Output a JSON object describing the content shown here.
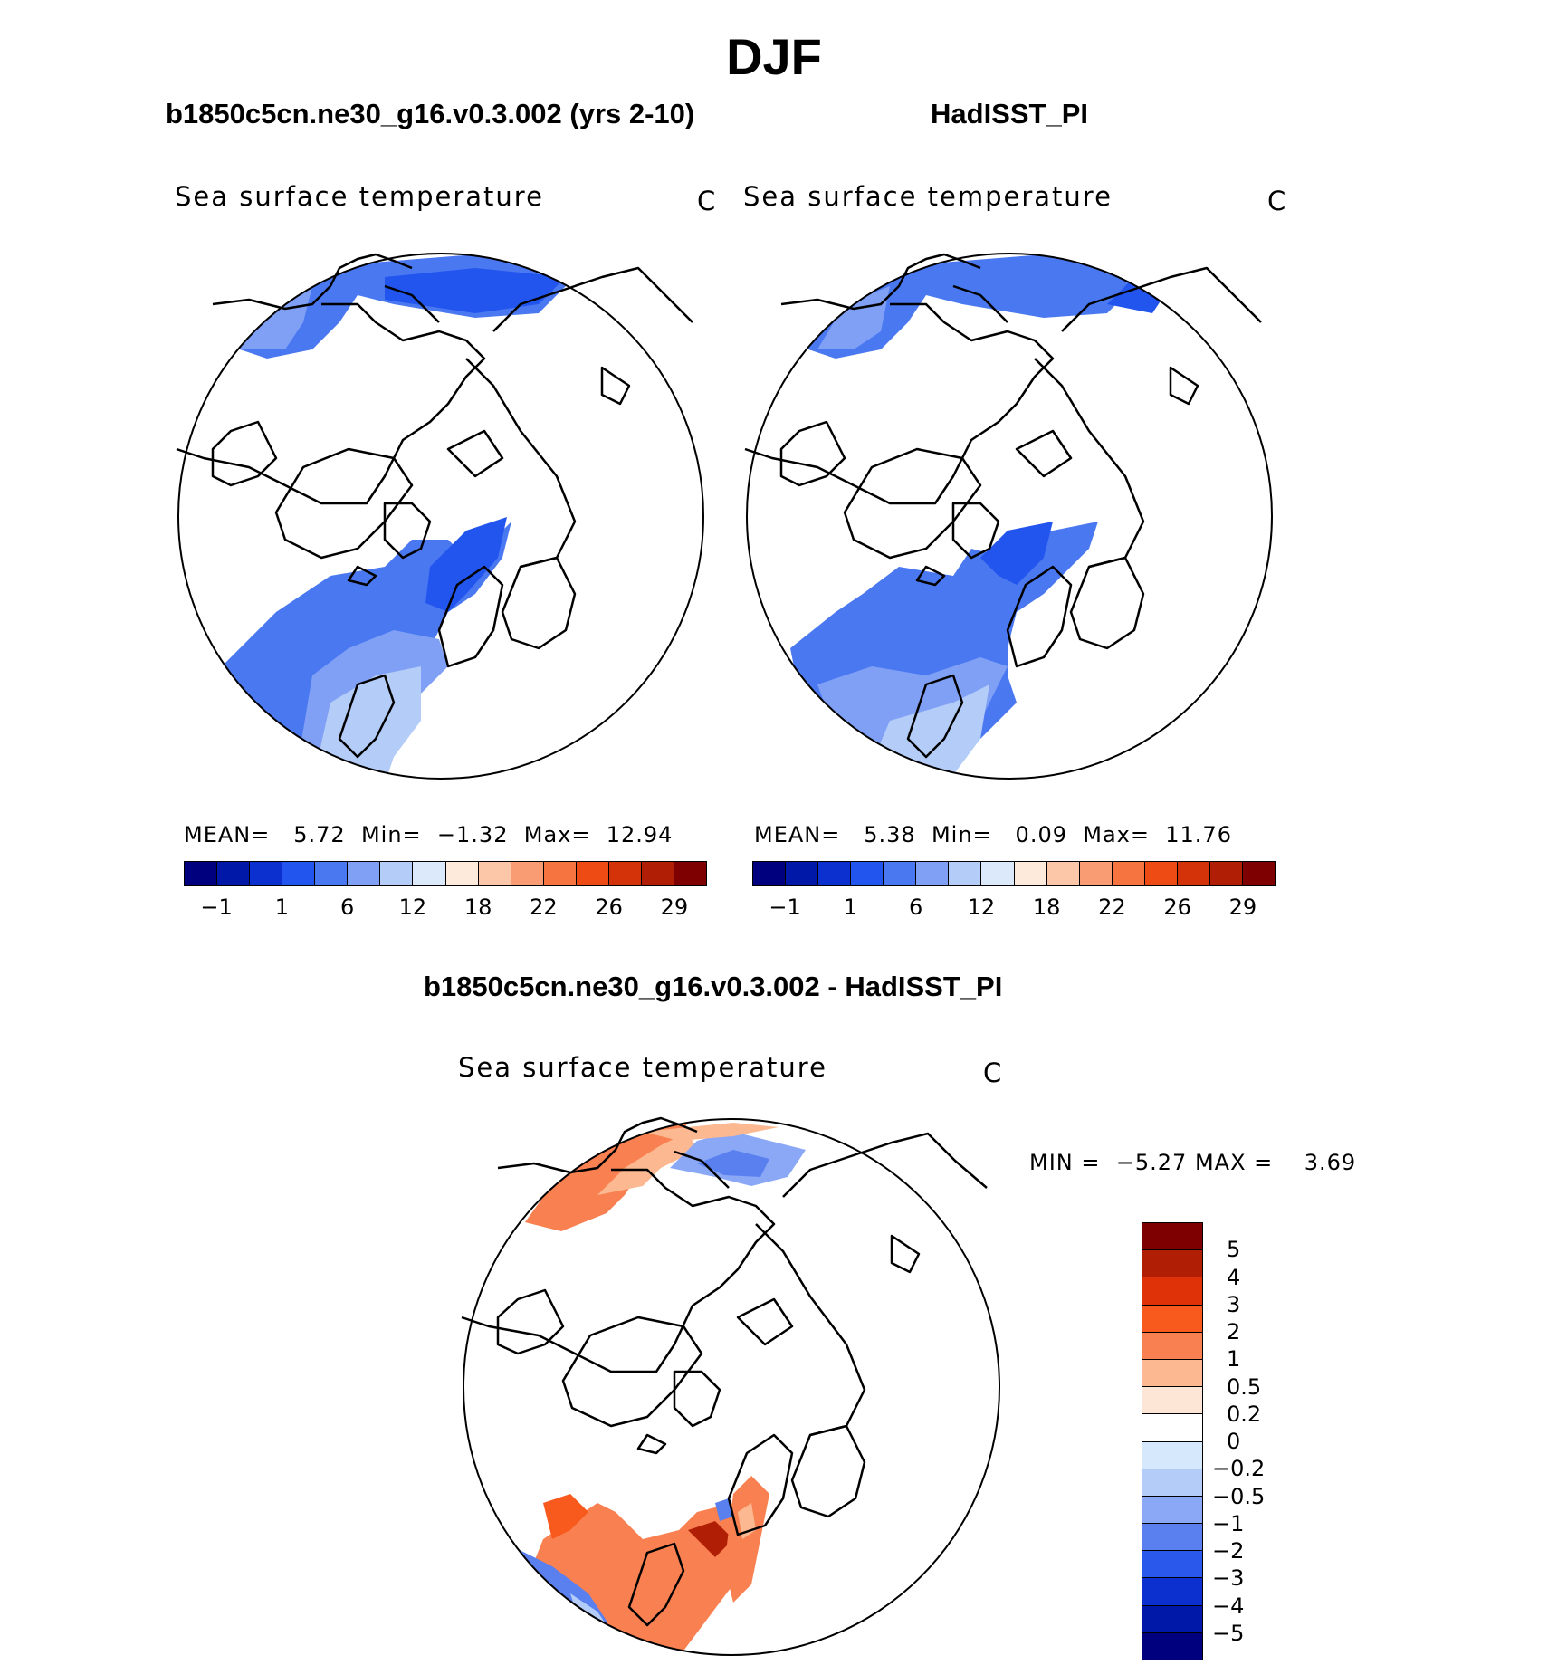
{
  "title": "DJF",
  "panels": [
    {
      "id": "model",
      "title": "b1850c5cn.ne30_g16.v0.3.002 (yrs 2-10)",
      "variable": "Sea surface temperature",
      "units": "C",
      "stats": {
        "mean_label": "MEAN=",
        "mean": "5.72",
        "min_label": "Min=",
        "min": "−1.32",
        "max_label": "Max=",
        "max": "12.94"
      }
    },
    {
      "id": "obs",
      "title": "HadISST_PI",
      "variable": "Sea surface temperature",
      "units": "C",
      "stats": {
        "mean_label": "MEAN=",
        "mean": "5.38",
        "min_label": "Min=",
        "min": "0.09",
        "max_label": "Max=",
        "max": "11.76"
      }
    },
    {
      "id": "diff",
      "title": "b1850c5cn.ne30_g16.v0.3.002 - HadISST_PI",
      "variable": "Sea surface temperature",
      "units": "C",
      "stats": {
        "min_label": "MIN =",
        "min": "−5.27",
        "max_label": "MAX =",
        "max": "3.69"
      }
    }
  ],
  "chart_data": [
    {
      "type": "heatmap",
      "projection": "north polar stereographic",
      "title": "b1850c5cn.ne30_g16.v0.3.002 (yrs 2-10)",
      "variable": "Sea surface temperature",
      "units": "C",
      "mean": 5.72,
      "min": -1.32,
      "max": 12.94,
      "colorbar": {
        "orientation": "horizontal",
        "tick_labels": [
          "−1",
          "1",
          "6",
          "12",
          "18",
          "22",
          "26",
          "29"
        ],
        "colors": [
          "#00007f",
          "#0018a8",
          "#0c30d0",
          "#2255ee",
          "#4a78f0",
          "#7fa0f5",
          "#b4ccf8",
          "#dce9fb",
          "#fdeadb",
          "#fcc7a8",
          "#f99b73",
          "#f5743f",
          "#ee4a14",
          "#d43208",
          "#b01e06",
          "#7f0000"
        ]
      }
    },
    {
      "type": "heatmap",
      "projection": "north polar stereographic",
      "title": "HadISST_PI",
      "variable": "Sea surface temperature",
      "units": "C",
      "mean": 5.38,
      "min": 0.09,
      "max": 11.76,
      "colorbar": {
        "orientation": "horizontal",
        "tick_labels": [
          "−1",
          "1",
          "6",
          "12",
          "18",
          "22",
          "26",
          "29"
        ],
        "colors": [
          "#00007f",
          "#0018a8",
          "#0c30d0",
          "#2255ee",
          "#4a78f0",
          "#7fa0f5",
          "#b4ccf8",
          "#dce9fb",
          "#fdeadb",
          "#fcc7a8",
          "#f99b73",
          "#f5743f",
          "#ee4a14",
          "#d43208",
          "#b01e06",
          "#7f0000"
        ]
      }
    },
    {
      "type": "heatmap",
      "projection": "north polar stereographic",
      "title": "b1850c5cn.ne30_g16.v0.3.002 - HadISST_PI",
      "variable": "Sea surface temperature",
      "units": "C",
      "min": -5.27,
      "max": 3.69,
      "colorbar": {
        "orientation": "vertical",
        "tick_labels": [
          "5",
          "4",
          "3",
          "2",
          "1",
          "0.5",
          "0.2",
          "0",
          "−0.2",
          "−0.5",
          "−1",
          "−2",
          "−3",
          "−4",
          "−5"
        ],
        "colors": [
          "#7f0000",
          "#b01e06",
          "#e03208",
          "#f85a1e",
          "#f98050",
          "#fcb890",
          "#fde6d6",
          "#ffffff",
          "#d6e8fc",
          "#b4ccf8",
          "#8aa8f6",
          "#5a80f0",
          "#2a58ea",
          "#0c30d0",
          "#0018a8",
          "#00007f"
        ]
      }
    }
  ]
}
